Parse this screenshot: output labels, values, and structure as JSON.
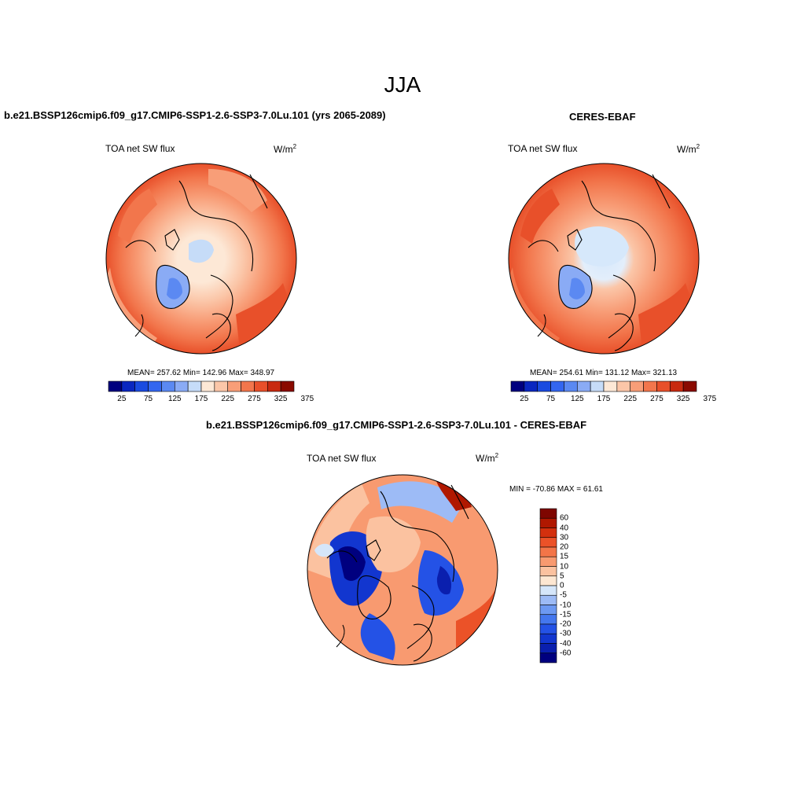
{
  "season_title": "JJA",
  "colors": {
    "levels14": [
      "#00007f",
      "#0a27c0",
      "#1a4be0",
      "#3366f0",
      "#5b89f2",
      "#8aabf5",
      "#c6dcf8",
      "#fde8d6",
      "#fbc6a8",
      "#f89e78",
      "#f2764c",
      "#e8502a",
      "#c82a10",
      "#8a0a00"
    ],
    "diff_levels16": [
      "#00007f",
      "#0a1fae",
      "#1236cf",
      "#2452e6",
      "#4477ee",
      "#6d99f2",
      "#9dbbf6",
      "#d5e6fa",
      "#fde7d2",
      "#fbc2a0",
      "#f89a70",
      "#f37548",
      "#eb5228",
      "#d3300e",
      "#b01800",
      "#7e0600"
    ]
  },
  "panels": {
    "model": {
      "title": "b.e21.BSSP126cmip6.f09_g17.CMIP6-SSP1-2.6-SSP3-7.0Lu.101 (yrs 2065-2089)",
      "variable": "TOA net SW flux",
      "units": "W/m",
      "units_sup": "2",
      "mean_label": "MEAN= 257.62  Min= 142.96  Max= 348.97",
      "mean": 257.62,
      "min": 142.96,
      "max": 348.97,
      "colorbar_ticks": [
        "25",
        "75",
        "125",
        "175",
        "225",
        "275",
        "325",
        "375"
      ]
    },
    "obs": {
      "title": "CERES-EBAF",
      "variable": "TOA net SW flux",
      "units": "W/m",
      "units_sup": "2",
      "mean_label": "MEAN= 254.61  Min= 131.12  Max= 321.13",
      "mean": 254.61,
      "min": 131.12,
      "max": 321.13,
      "colorbar_ticks": [
        "25",
        "75",
        "125",
        "175",
        "225",
        "275",
        "325",
        "375"
      ]
    },
    "diff": {
      "title": "b.e21.BSSP126cmip6.f09_g17.CMIP6-SSP1-2.6-SSP3-7.0Lu.101 - CERES-EBAF",
      "variable": "TOA net SW flux",
      "units": "W/m",
      "units_sup": "2",
      "minmax_label": "MIN = -70.86 MAX =  61.61",
      "min": -70.86,
      "max": 61.61,
      "colorbar_ticks": [
        "60",
        "40",
        "30",
        "20",
        "15",
        "10",
        "5",
        "0",
        "-5",
        "-10",
        "-15",
        "-20",
        "-30",
        "-40",
        "-60"
      ]
    }
  }
}
